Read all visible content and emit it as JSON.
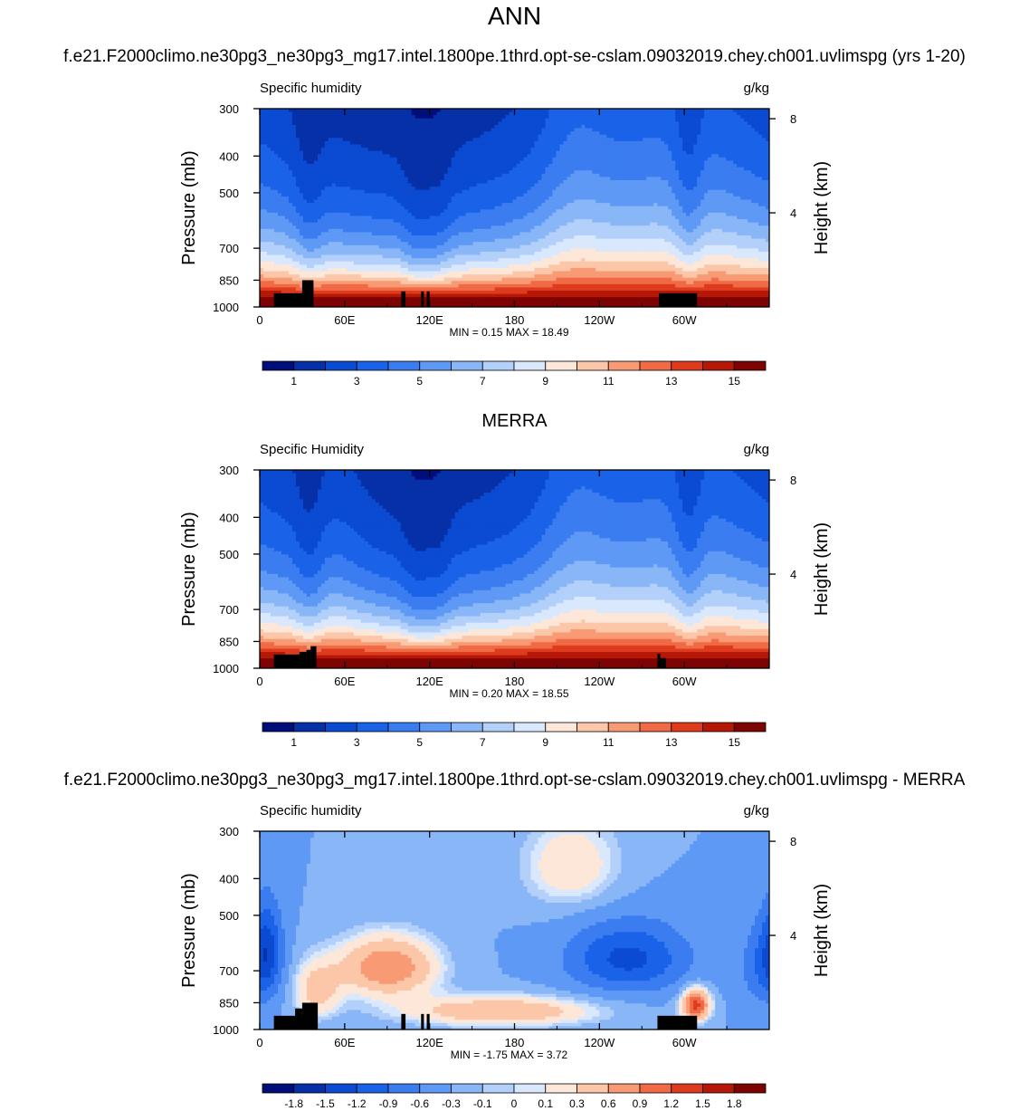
{
  "figure": {
    "title": "ANN",
    "case_title": "f.e21.F2000climo.ne30pg3_ne30pg3_mg17.intel.1800pe.1thrd.opt-se-cslam.09032019.chey.ch001.uvlimspg (yrs 1-20)",
    "obs_title": "MERRA",
    "diff_title": "f.e21.F2000climo.ne30pg3_ne30pg3_mg17.intel.1800pe.1thrd.opt-se-cslam.09032019.chey.ch001.uvlimspg - MERRA"
  },
  "chart_data": [
    {
      "type": "heatmap",
      "id": "model",
      "left_label": "Specific humidity",
      "units": "g/kg",
      "ylabel": "Pressure (mb)",
      "y2label": "Height (km)",
      "x_ticks": [
        "0",
        "60E",
        "120E",
        "180",
        "120W",
        "60W"
      ],
      "x_tick_lon": [
        0,
        60,
        120,
        180,
        240,
        300
      ],
      "y_ticks": [
        "300",
        "400",
        "500",
        "700",
        "850",
        "1000"
      ],
      "y_tick_p": [
        300,
        400,
        500,
        700,
        850,
        1000
      ],
      "y2_ticks": [
        "8",
        "4"
      ],
      "y2_tick_km": [
        8,
        4
      ],
      "xlim": [
        0,
        360
      ],
      "ylim": [
        1000,
        300
      ],
      "stats": "MIN =   0.15  MAX =  18.49",
      "levels": [
        1,
        2,
        3,
        4,
        5,
        6,
        7,
        8,
        9,
        10,
        11,
        12,
        13,
        14,
        15
      ],
      "colorbar_labels": [
        "1",
        "3",
        "5",
        "7",
        "9",
        "11",
        "13",
        "15"
      ],
      "colors": [
        "#000e7a",
        "#0630a8",
        "#0a4bd2",
        "#1a62e8",
        "#3b7df0",
        "#5e99f5",
        "#89b6f7",
        "#b3d0fa",
        "#d9e8fc",
        "#fde7d8",
        "#fcc6a8",
        "#f89b74",
        "#ef6a45",
        "#de3a1e",
        "#b51807",
        "#7e0303"
      ],
      "peaks_lon": [
        35,
        110,
        125,
        303
      ],
      "trough_lon": [
        220
      ],
      "terrain": [
        [
          10,
          34,
          920
        ],
        [
          30,
          38,
          850
        ],
        [
          100,
          103,
          910
        ],
        [
          114,
          116,
          910
        ],
        [
          118,
          120,
          910
        ],
        [
          282,
          309,
          920
        ]
      ],
      "range": [
        0.15,
        18.49
      ]
    },
    {
      "type": "heatmap",
      "id": "obs",
      "left_label": "Specific Humidity",
      "units": "g/kg",
      "ylabel": "Pressure (mb)",
      "y2label": "Height (km)",
      "x_ticks": [
        "0",
        "60E",
        "120E",
        "180",
        "120W",
        "60W"
      ],
      "x_tick_lon": [
        0,
        60,
        120,
        180,
        240,
        300
      ],
      "y_ticks": [
        "300",
        "400",
        "500",
        "700",
        "850",
        "1000"
      ],
      "y_tick_p": [
        300,
        400,
        500,
        700,
        850,
        1000
      ],
      "y2_ticks": [
        "8",
        "4"
      ],
      "y2_tick_km": [
        8,
        4
      ],
      "xlim": [
        0,
        360
      ],
      "ylim": [
        1000,
        300
      ],
      "stats": "MIN =   0.20  MAX =  18.55",
      "levels": [
        1,
        2,
        3,
        4,
        5,
        6,
        7,
        8,
        9,
        10,
        11,
        12,
        13,
        14,
        15
      ],
      "colorbar_labels": [
        "1",
        "3",
        "5",
        "7",
        "9",
        "11",
        "13",
        "15"
      ],
      "colors": [
        "#000e7a",
        "#0630a8",
        "#0a4bd2",
        "#1a62e8",
        "#3b7df0",
        "#5e99f5",
        "#89b6f7",
        "#b3d0fa",
        "#d9e8fc",
        "#fde7d8",
        "#fcc6a8",
        "#f89b74",
        "#ef6a45",
        "#de3a1e",
        "#b51807",
        "#7e0303"
      ],
      "peaks_lon": [
        35,
        110,
        125,
        303
      ],
      "trough_lon": [
        55,
        220
      ],
      "terrain": [
        [
          10,
          28,
          920
        ],
        [
          28,
          33,
          905
        ],
        [
          33,
          36,
          895
        ],
        [
          36,
          40,
          875
        ],
        [
          281,
          283,
          915
        ],
        [
          283,
          287,
          940
        ]
      ],
      "range": [
        0.2,
        18.55
      ]
    },
    {
      "type": "heatmap",
      "id": "diff",
      "left_label": "Specific humidity",
      "units": "g/kg",
      "ylabel": "Pressure (mb)",
      "y2label": "Height (km)",
      "x_ticks": [
        "0",
        "60E",
        "120E",
        "180",
        "120W",
        "60W"
      ],
      "x_tick_lon": [
        0,
        60,
        120,
        180,
        240,
        300
      ],
      "y_ticks": [
        "300",
        "400",
        "500",
        "700",
        "850",
        "1000"
      ],
      "y_tick_p": [
        300,
        400,
        500,
        700,
        850,
        1000
      ],
      "y2_ticks": [
        "8",
        "4"
      ],
      "y2_tick_km": [
        8,
        4
      ],
      "xlim": [
        0,
        360
      ],
      "ylim": [
        1000,
        300
      ],
      "stats": "MIN =  -1.75  MAX =   3.72",
      "levels": [
        -1.8,
        -1.5,
        -1.2,
        -0.9,
        -0.6,
        -0.3,
        -0.1,
        0,
        0.1,
        0.3,
        0.6,
        0.9,
        1.2,
        1.5,
        1.8
      ],
      "colorbar_labels": [
        "-1.8",
        "-1.5",
        "-1.2",
        "-0.9",
        "-0.6",
        "-0.3",
        "-0.1",
        "0",
        "0.1",
        "0.3",
        "0.6",
        "0.9",
        "1.2",
        "1.5",
        "1.8"
      ],
      "colors": [
        "#000e7a",
        "#0630a8",
        "#0a4bd2",
        "#1a62e8",
        "#3b7df0",
        "#5e99f5",
        "#89b6f7",
        "#b3d0fa",
        "#d9e8fc",
        "#fde7d8",
        "#fcc6a8",
        "#f89b74",
        "#ef6a45",
        "#de3a1e",
        "#b51807",
        "#7e0303"
      ],
      "terrain": [
        [
          10,
          34,
          920
        ],
        [
          25,
          30,
          880
        ],
        [
          30,
          41,
          850
        ],
        [
          100,
          103,
          910
        ],
        [
          114,
          116,
          910
        ],
        [
          118,
          120,
          910
        ],
        [
          281,
          309,
          920
        ]
      ],
      "range": [
        -1.75,
        3.72
      ]
    }
  ]
}
